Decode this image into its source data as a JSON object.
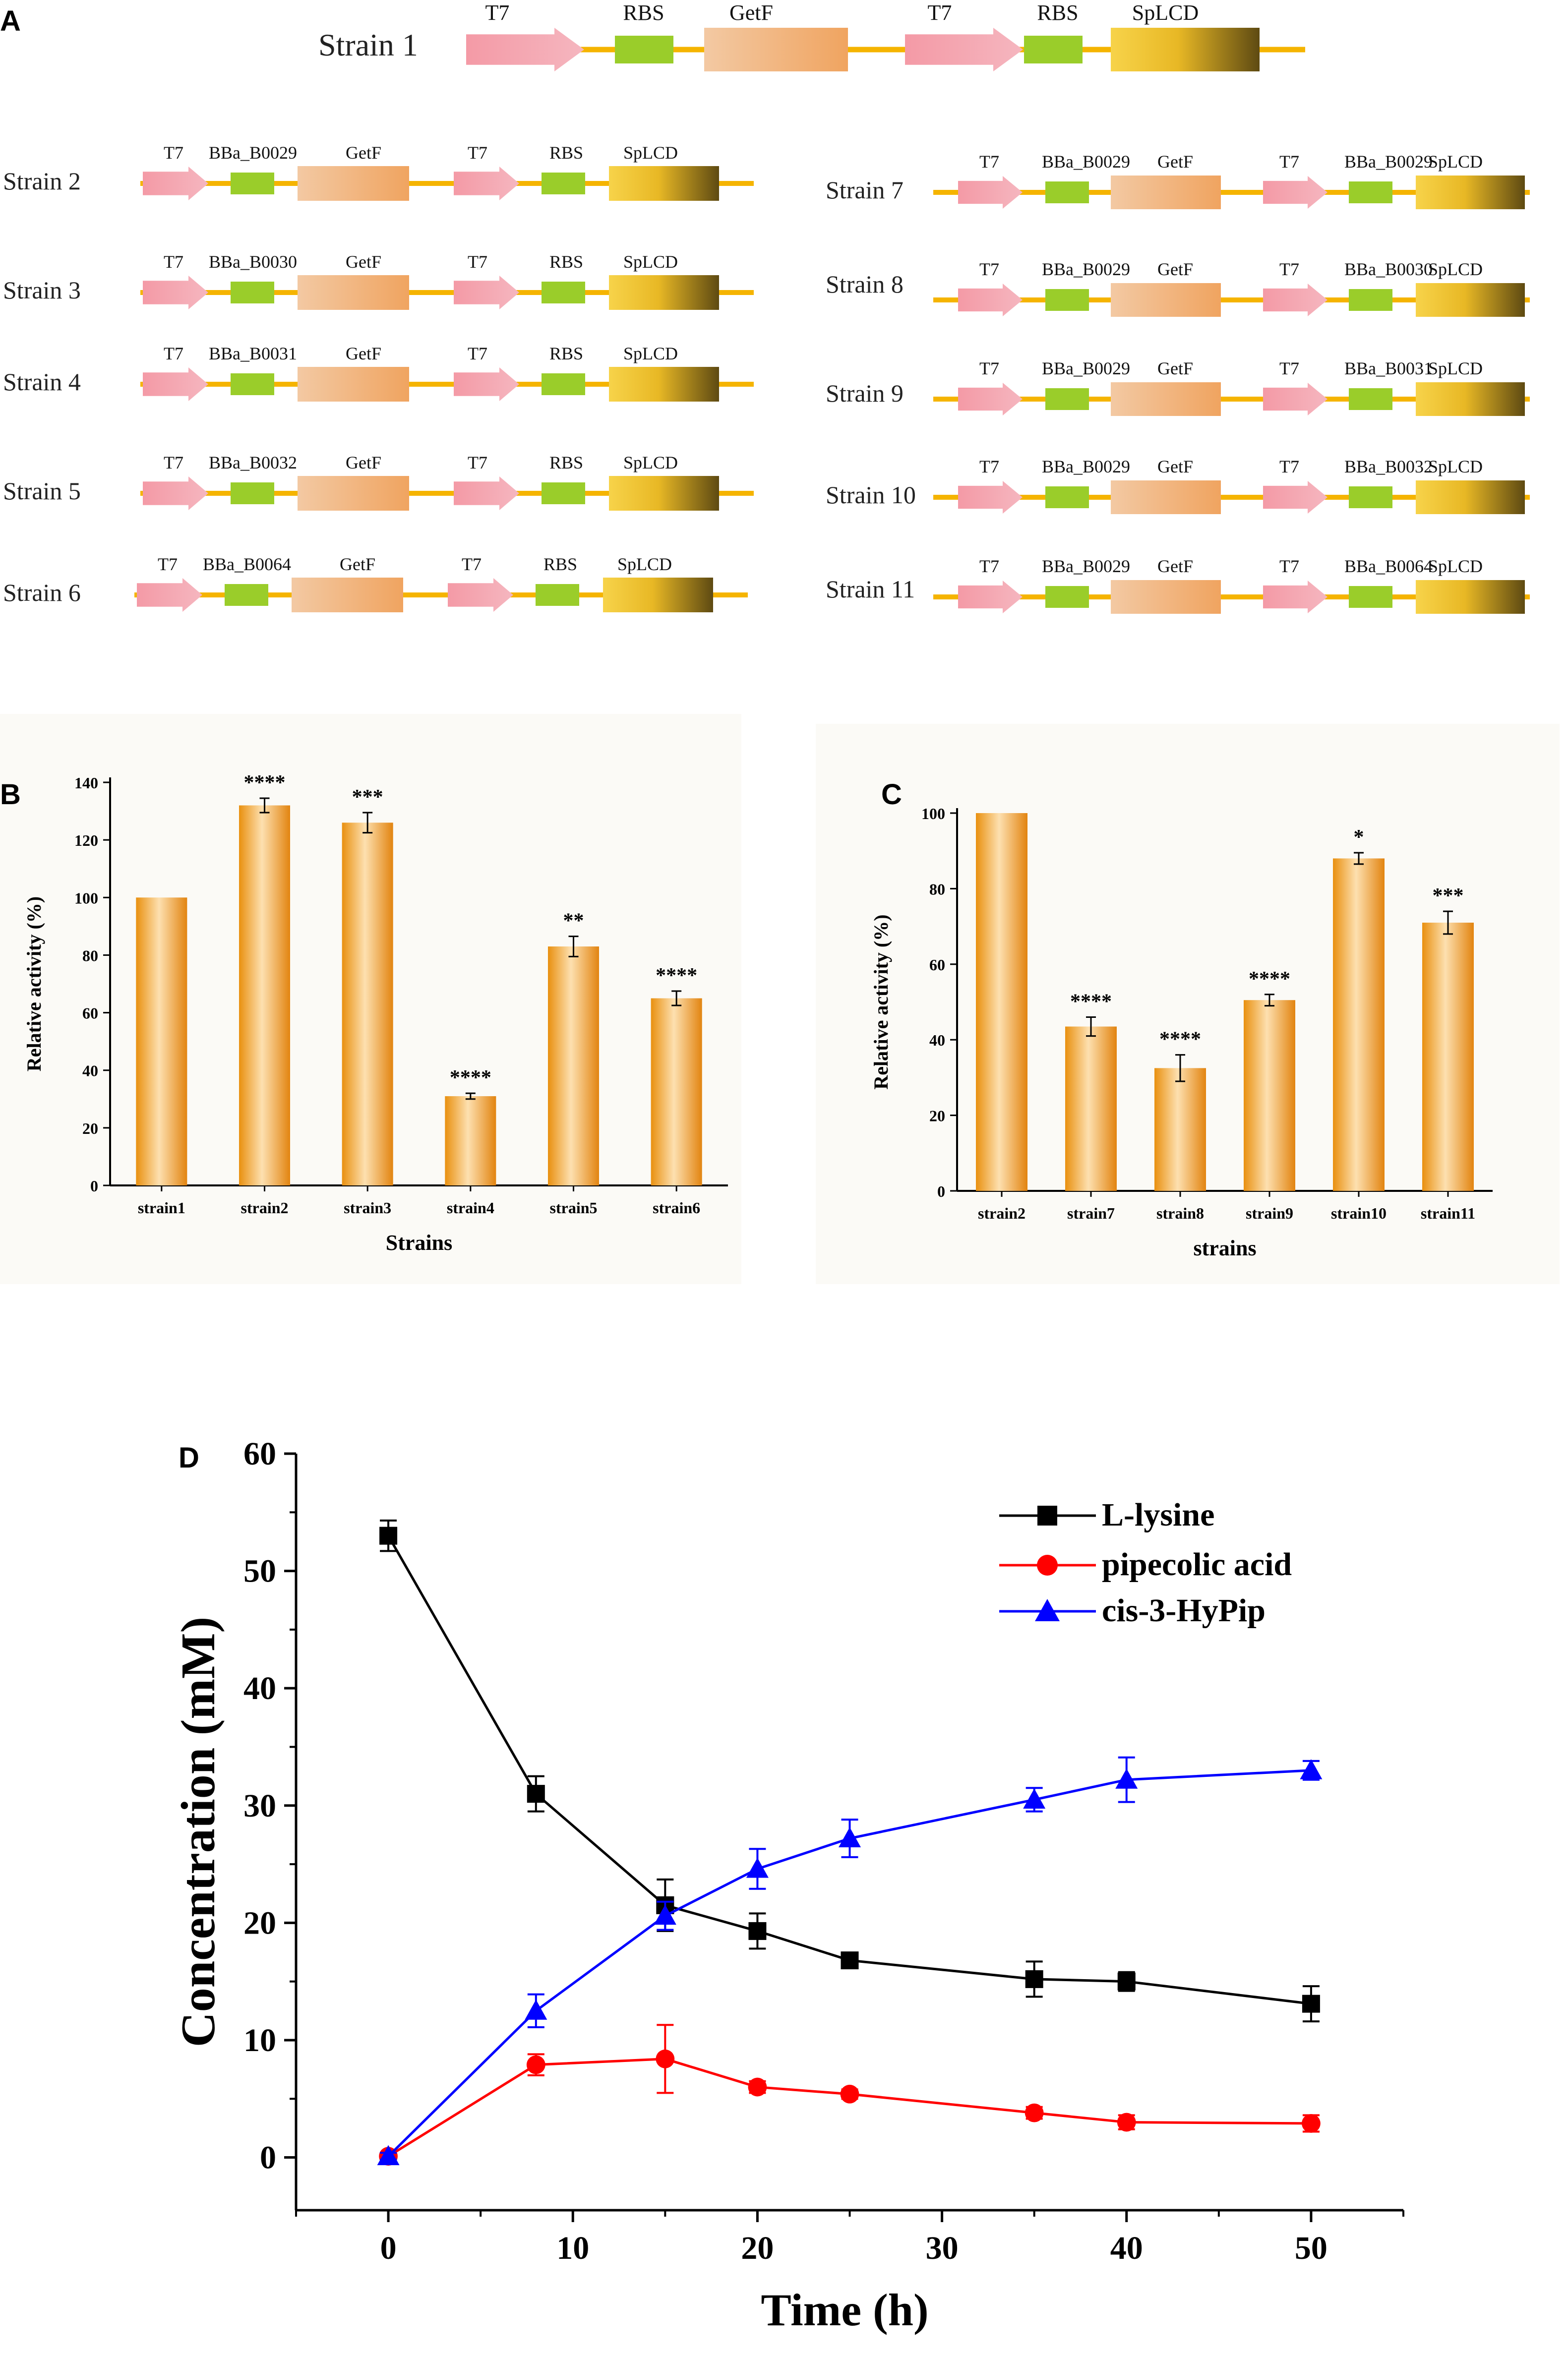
{
  "colors": {
    "backbone": "#f5b400",
    "promoter_a": "#f49aa6",
    "promoter_b": "#f5b6bf",
    "rbs": "#9acd2a",
    "getf_a": "#f3c9a3",
    "getf_b": "#f0a460",
    "splcd_a": "#f7d34a",
    "splcd_b": "#5e4a12",
    "bar_light": "#fde0b0",
    "bar_mid": "#f3a52e",
    "bar_dark": "#e28410",
    "panel_bg": "#fbfaf6",
    "lysine": "#000000",
    "pipecolic": "#ff0000",
    "hypip": "#0000ff"
  },
  "panel_a": {
    "label": "A",
    "strain1": {
      "name": "Strain 1",
      "parts": [
        "T7",
        "RBS",
        "GetF",
        "T7",
        "RBS",
        "SpLCD"
      ]
    },
    "left_constructs": [
      {
        "name": "Strain 2",
        "parts": [
          "T7",
          "BBa_B0029",
          "GetF",
          "T7",
          "RBS",
          "SpLCD"
        ]
      },
      {
        "name": "Strain 3",
        "parts": [
          "T7",
          "BBa_B0030",
          "GetF",
          "T7",
          "RBS",
          "SpLCD"
        ]
      },
      {
        "name": "Strain 4",
        "parts": [
          "T7",
          "BBa_B0031",
          "GetF",
          "T7",
          "RBS",
          "SpLCD"
        ]
      },
      {
        "name": "Strain 5",
        "parts": [
          "T7",
          "BBa_B0032",
          "GetF",
          "T7",
          "RBS",
          "SpLCD"
        ]
      },
      {
        "name": "Strain 6",
        "parts": [
          "T7",
          "BBa_B0064",
          "GetF",
          "T7",
          "RBS",
          "SpLCD"
        ]
      }
    ],
    "right_constructs": [
      {
        "name": "Strain 7",
        "parts": [
          "T7",
          "BBa_B0029",
          "GetF",
          "T7",
          "BBa_B0029",
          "SpLCD"
        ]
      },
      {
        "name": "Strain 8",
        "parts": [
          "T7",
          "BBa_B0029",
          "GetF",
          "T7",
          "BBa_B0030",
          "SpLCD"
        ]
      },
      {
        "name": "Strain 9",
        "parts": [
          "T7",
          "BBa_B0029",
          "GetF",
          "T7",
          "BBa_B0031",
          "SpLCD"
        ]
      },
      {
        "name": "Strain 10",
        "parts": [
          "T7",
          "BBa_B0029",
          "GetF",
          "T7",
          "BBa_B0032",
          "SpLCD"
        ]
      },
      {
        "name": "Strain 11",
        "parts": [
          "T7",
          "BBa_B0029",
          "GetF",
          "T7",
          "BBa_B0064",
          "SpLCD"
        ]
      }
    ]
  },
  "chart_data": [
    {
      "panel": "B",
      "type": "bar",
      "categories": [
        "strain1",
        "strain2",
        "strain3",
        "strain4",
        "strain5",
        "strain6"
      ],
      "values": [
        100,
        132,
        126,
        31,
        83,
        65
      ],
      "errors": [
        0,
        2.5,
        3.5,
        1,
        3.5,
        2.5
      ],
      "significance": [
        "",
        "****",
        "***",
        "****",
        "**",
        "****"
      ],
      "xlabel": "Strains",
      "ylabel": "Relative activity (%)",
      "ylim": [
        0,
        140
      ],
      "yticks": [
        0,
        20,
        40,
        60,
        80,
        100,
        120,
        140
      ]
    },
    {
      "panel": "C",
      "type": "bar",
      "categories": [
        "strain2",
        "strain7",
        "strain8",
        "strain9",
        "strain10",
        "strain11"
      ],
      "values": [
        100,
        43.5,
        32.5,
        50.5,
        88,
        71
      ],
      "errors": [
        0,
        2.5,
        3.5,
        1.5,
        1.5,
        3
      ],
      "significance": [
        "",
        "****",
        "****",
        "****",
        "*",
        "***"
      ],
      "xlabel": "strains",
      "ylabel": "Relative activity (%)",
      "ylim": [
        0,
        100
      ],
      "yticks": [
        0,
        20,
        40,
        60,
        80,
        100
      ]
    },
    {
      "panel": "D",
      "type": "line",
      "x": [
        0,
        8,
        15,
        20,
        25,
        35,
        40,
        50
      ],
      "series": [
        {
          "name": "L-lysine",
          "marker": "square",
          "values": [
            53,
            31,
            21.5,
            19.3,
            16.8,
            15.2,
            15,
            13.1
          ],
          "errors": [
            1.3,
            1.5,
            2.2,
            1.5,
            0.6,
            1.5,
            0.8,
            1.5
          ]
        },
        {
          "name": "pipecolic acid",
          "marker": "circle",
          "values": [
            0.1,
            7.9,
            8.4,
            6,
            5.4,
            3.8,
            3,
            2.9
          ],
          "errors": [
            0.3,
            0.9,
            2.9,
            0.5,
            0.4,
            0.5,
            0.6,
            0.7
          ]
        },
        {
          "name": "cis-3-HyPip",
          "marker": "triangle",
          "values": [
            0.1,
            12.5,
            20.6,
            24.6,
            27.2,
            30.5,
            32.2,
            33
          ],
          "errors": [
            0.3,
            1.4,
            1.2,
            1.7,
            1.6,
            1,
            1.9,
            0.8
          ]
        }
      ],
      "xlabel": "Time (h)",
      "ylabel": "Concentration (mM)",
      "xlim": [
        -5,
        55
      ],
      "ylim": [
        -4.5,
        60
      ],
      "xticks": [
        0,
        10,
        20,
        30,
        40,
        50
      ],
      "yticks": [
        0,
        10,
        20,
        30,
        40,
        50,
        60
      ],
      "legend": "top-right"
    }
  ],
  "panel_b_label": "B",
  "panel_c_label": "C",
  "panel_d_label": "D"
}
